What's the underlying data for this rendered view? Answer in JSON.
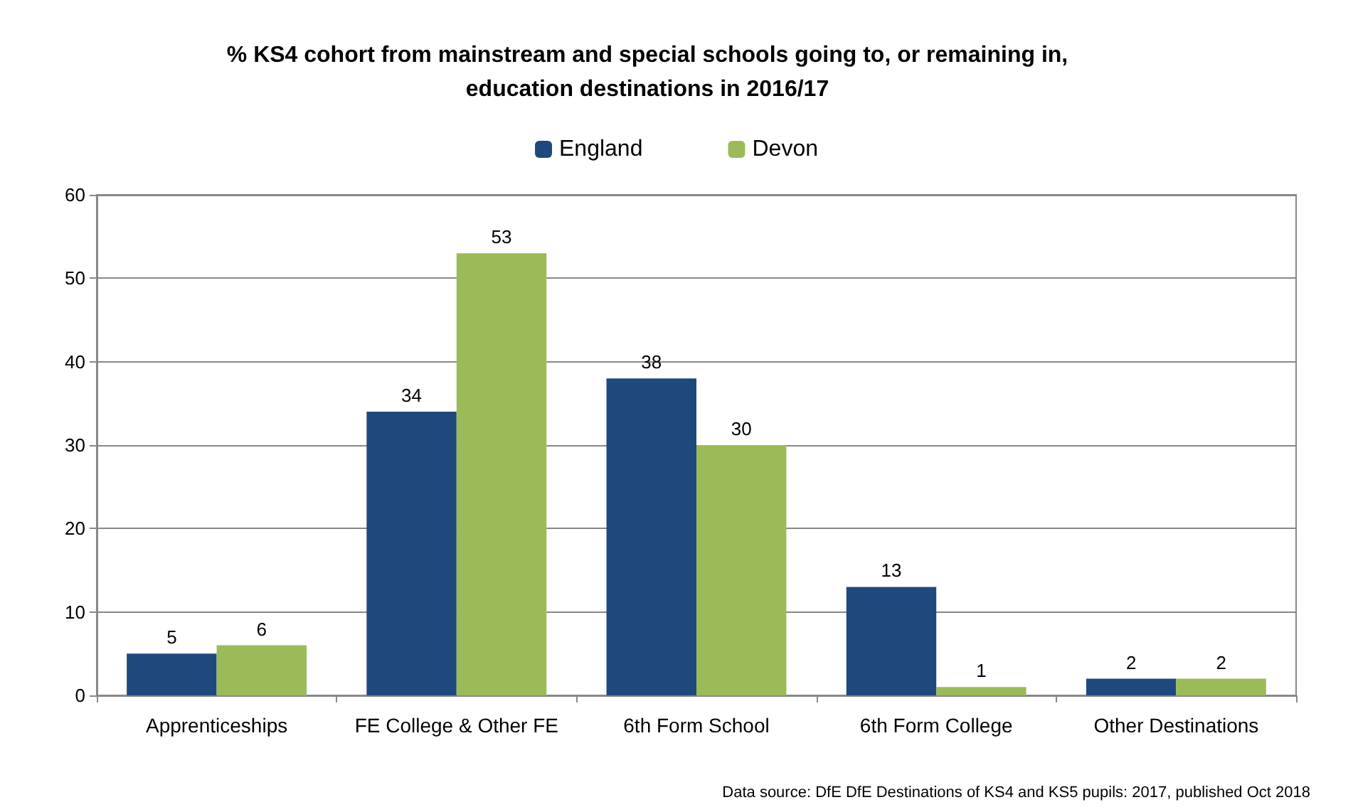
{
  "chart_data": {
    "type": "bar",
    "title": "% KS4 cohort from mainstream and special schools going to, or remaining in,\neducation destinations in 2016/17",
    "categories": [
      "Apprenticeships",
      "FE College & Other FE",
      "6th Form School",
      "6th Form College",
      "Other Destinations"
    ],
    "series": [
      {
        "name": "England",
        "color": "#1f497d",
        "values": [
          5,
          34,
          38,
          13,
          2
        ]
      },
      {
        "name": "Devon",
        "color": "#9bbb59",
        "values": [
          6,
          53,
          30,
          1,
          2
        ]
      }
    ],
    "ylim": [
      0,
      60
    ],
    "yticks": [
      0,
      10,
      20,
      30,
      40,
      50,
      60
    ],
    "grid": "y",
    "legend": "top",
    "data_labels": true,
    "annotations": [
      "Data source: DfE DfE Destinations of KS4 and KS5 pupils: 2017, published Oct 2018"
    ]
  }
}
